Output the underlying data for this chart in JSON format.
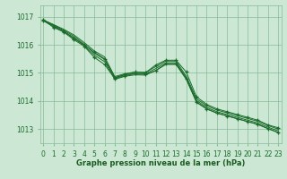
{
  "bg_color": "#cce8d4",
  "grid_color": "#88bb99",
  "line_color": "#1a6b2a",
  "marker_color": "#1a6b2a",
  "xlabel": "Graphe pression niveau de la mer (hPa)",
  "xlabel_color": "#1a5c20",
  "ylabel_ticks": [
    1013,
    1014,
    1015,
    1016,
    1017
  ],
  "xtick_labels": [
    "0",
    "1",
    "2",
    "3",
    "4",
    "5",
    "6",
    "7",
    "8",
    "9",
    "10",
    "11",
    "12",
    "13",
    "14",
    "15",
    "16",
    "17",
    "18",
    "19",
    "20",
    "21",
    "22",
    "23"
  ],
  "ylim": [
    1012.5,
    1017.4
  ],
  "xlim": [
    -0.3,
    23.3
  ],
  "line1": [
    1016.88,
    1016.72,
    1016.55,
    1016.35,
    1016.08,
    1015.78,
    1015.57,
    1014.87,
    1014.97,
    1015.03,
    1015.02,
    1015.22,
    1015.42,
    1015.42,
    1014.88,
    1014.08,
    1013.83,
    1013.68,
    1013.58,
    1013.48,
    1013.38,
    1013.28,
    1013.13,
    1013.0
  ],
  "line2": [
    1016.88,
    1016.7,
    1016.52,
    1016.3,
    1016.02,
    1015.7,
    1015.48,
    1014.82,
    1014.93,
    1014.98,
    1014.97,
    1015.15,
    1015.36,
    1015.36,
    1014.82,
    1014.02,
    1013.77,
    1013.62,
    1013.52,
    1013.42,
    1013.32,
    1013.22,
    1013.07,
    1012.94
  ],
  "line3": [
    1016.88,
    1016.68,
    1016.48,
    1016.25,
    1015.97,
    1015.63,
    1015.4,
    1014.77,
    1014.88,
    1014.93,
    1014.92,
    1015.08,
    1015.3,
    1015.3,
    1014.77,
    1013.97,
    1013.72,
    1013.57,
    1013.47,
    1013.37,
    1013.27,
    1013.17,
    1013.02,
    1012.88
  ],
  "marker_line1": [
    1016.85,
    1016.65,
    1016.48,
    1016.22,
    1016.0,
    1015.73,
    1015.5,
    1014.83,
    1014.95,
    1015.03,
    1015.0,
    1015.28,
    1015.45,
    1015.45,
    1015.03,
    1014.15,
    1013.88,
    1013.72,
    1013.62,
    1013.52,
    1013.42,
    1013.32,
    1013.15,
    1013.05
  ],
  "marker_line2": [
    1016.88,
    1016.62,
    1016.45,
    1016.18,
    1015.95,
    1015.55,
    1015.3,
    1014.8,
    1014.9,
    1014.97,
    1014.95,
    1015.08,
    1015.32,
    1015.32,
    1014.8,
    1013.95,
    1013.72,
    1013.57,
    1013.47,
    1013.37,
    1013.27,
    1013.17,
    1013.02,
    1012.88
  ]
}
